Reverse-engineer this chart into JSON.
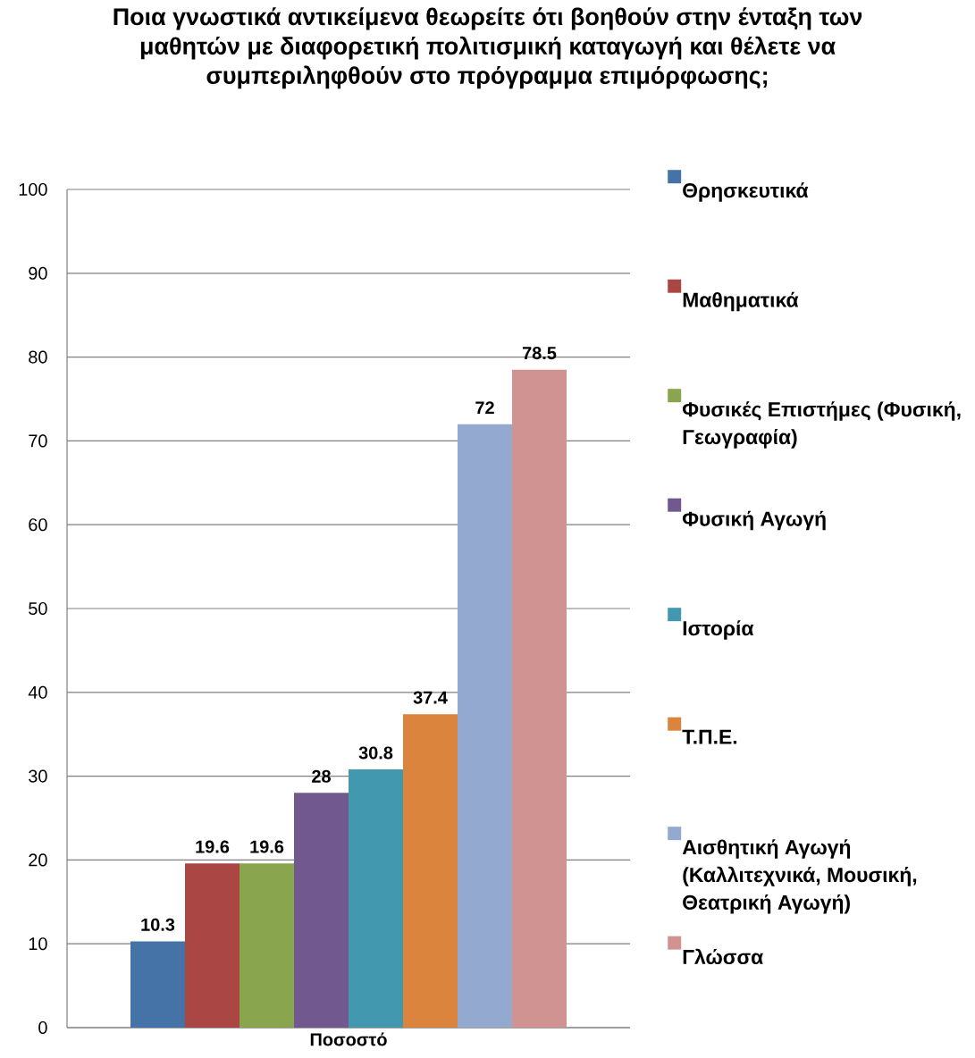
{
  "chart_data": {
    "type": "bar",
    "title": "Ποια γνωστικά αντικείμενα θεωρείτε ότι βοηθούν στην ένταξη των μαθητών με διαφορετική πολιτισμική καταγωγή και θέλετε να συμπεριληφθούν στο πρόγραμμα επιμόρφωσης;",
    "categories": [
      "Ποσοστό"
    ],
    "series": [
      {
        "name": "Θρησκευτικά",
        "color": "#4572a7",
        "values": [
          10.3
        ]
      },
      {
        "name": "Μαθηματικά",
        "color": "#aa4643",
        "values": [
          19.6
        ]
      },
      {
        "name": "Φυσικές Επιστήμες (Φυσική, Γεωγραφία)",
        "color": "#89a54e",
        "values": [
          19.6
        ]
      },
      {
        "name": "Φυσική Αγωγή",
        "color": "#71588f",
        "values": [
          28
        ]
      },
      {
        "name": "Ιστορία",
        "color": "#4198af",
        "values": [
          30.8
        ]
      },
      {
        "name": "Τ.Π.Ε.",
        "color": "#db843d",
        "values": [
          37.4
        ]
      },
      {
        "name": "Αισθητική Αγωγή (Καλλιτεχνικά, Μουσική, Θεατρική Αγωγή)",
        "color": "#93a9cf",
        "values": [
          72
        ]
      },
      {
        "name": "Γλώσσα",
        "color": "#d19392",
        "values": [
          78.5
        ]
      }
    ],
    "ylim": [
      0,
      100
    ],
    "yticks": [
      0,
      10,
      20,
      30,
      40,
      50,
      60,
      70,
      80,
      90,
      100
    ],
    "grid": "y",
    "legend": "right",
    "data_labels": true
  }
}
